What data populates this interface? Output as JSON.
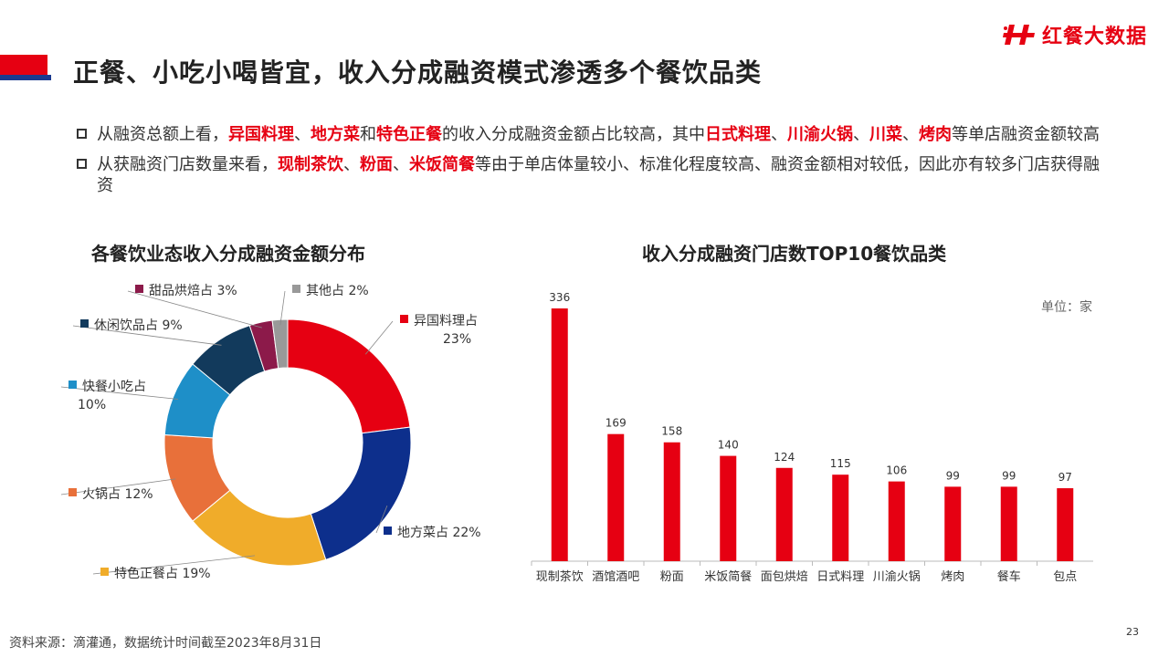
{
  "header": {
    "title": "正餐、小吃小喝皆宜，收入分成融资模式渗透多个餐饮品类",
    "logo_text": "红餐大数据",
    "accent_red": "#e60012",
    "accent_blue": "#1a3a8f"
  },
  "bullets": [
    {
      "parts": [
        {
          "text": "从融资总额上看，",
          "hl": false
        },
        {
          "text": "异国料理",
          "hl": true
        },
        {
          "text": "、",
          "hl": false
        },
        {
          "text": "地方菜",
          "hl": true
        },
        {
          "text": "和",
          "hl": false
        },
        {
          "text": "特色正餐",
          "hl": true
        },
        {
          "text": "的收入分成融资金额占比较高，其中",
          "hl": false
        },
        {
          "text": "日式料理",
          "hl": true
        },
        {
          "text": "、",
          "hl": false
        },
        {
          "text": "川渝火锅",
          "hl": true
        },
        {
          "text": "、",
          "hl": false
        },
        {
          "text": "川菜",
          "hl": true
        },
        {
          "text": "、",
          "hl": false
        },
        {
          "text": "烤肉",
          "hl": true
        },
        {
          "text": "等单店融资金额较高",
          "hl": false
        }
      ]
    },
    {
      "parts": [
        {
          "text": "从获融资门店数量来看，",
          "hl": false
        },
        {
          "text": "现制茶饮",
          "hl": true
        },
        {
          "text": "、",
          "hl": false
        },
        {
          "text": "粉面",
          "hl": true
        },
        {
          "text": "、",
          "hl": false
        },
        {
          "text": "米饭简餐",
          "hl": true
        },
        {
          "text": "等由于单店体量较小、标准化程度较高、融资金额相对较低，因此亦有较多门店获得融资",
          "hl": false
        }
      ]
    }
  ],
  "chart_data": [
    {
      "type": "pie",
      "title": "各餐饮业态收入分成融资金额分布",
      "slices": [
        {
          "name": "异国料理占",
          "value": 23,
          "label": "23%",
          "color": "#e60012"
        },
        {
          "name": "地方菜占",
          "value": 22,
          "label": "22%",
          "color": "#0d2f8c"
        },
        {
          "name": "特色正餐占",
          "value": 19,
          "label": "19%",
          "color": "#f0ac2a"
        },
        {
          "name": "火锅占",
          "value": 12,
          "label": "12%",
          "color": "#e8703a"
        },
        {
          "name": "快餐小吃占",
          "value": 10,
          "label": "10%",
          "color": "#1e8fc8"
        },
        {
          "name": "休闲饮品占",
          "value": 9,
          "label": "9%",
          "color": "#123a5c"
        },
        {
          "name": "甜品烘焙占",
          "value": 3,
          "label": "3%",
          "color": "#8c1a4a"
        },
        {
          "name": "其他占",
          "value": 2,
          "label": "2%",
          "color": "#999999"
        }
      ]
    },
    {
      "type": "bar",
      "title": "收入分成融资门店数TOP10餐饮品类",
      "unit": "单位：家",
      "categories": [
        "现制茶饮",
        "酒馆酒吧",
        "粉面",
        "米饭简餐",
        "面包烘焙",
        "日式料理",
        "川渝火锅",
        "烤肉",
        "餐车",
        "包点"
      ],
      "values": [
        336,
        169,
        158,
        140,
        124,
        115,
        106,
        99,
        99,
        97
      ],
      "color": "#e60012",
      "ylim": [
        0,
        336
      ]
    }
  ],
  "footer": {
    "source": "资料来源：滴灌通，数据统计时间截至2023年8月31日",
    "page": "23"
  }
}
